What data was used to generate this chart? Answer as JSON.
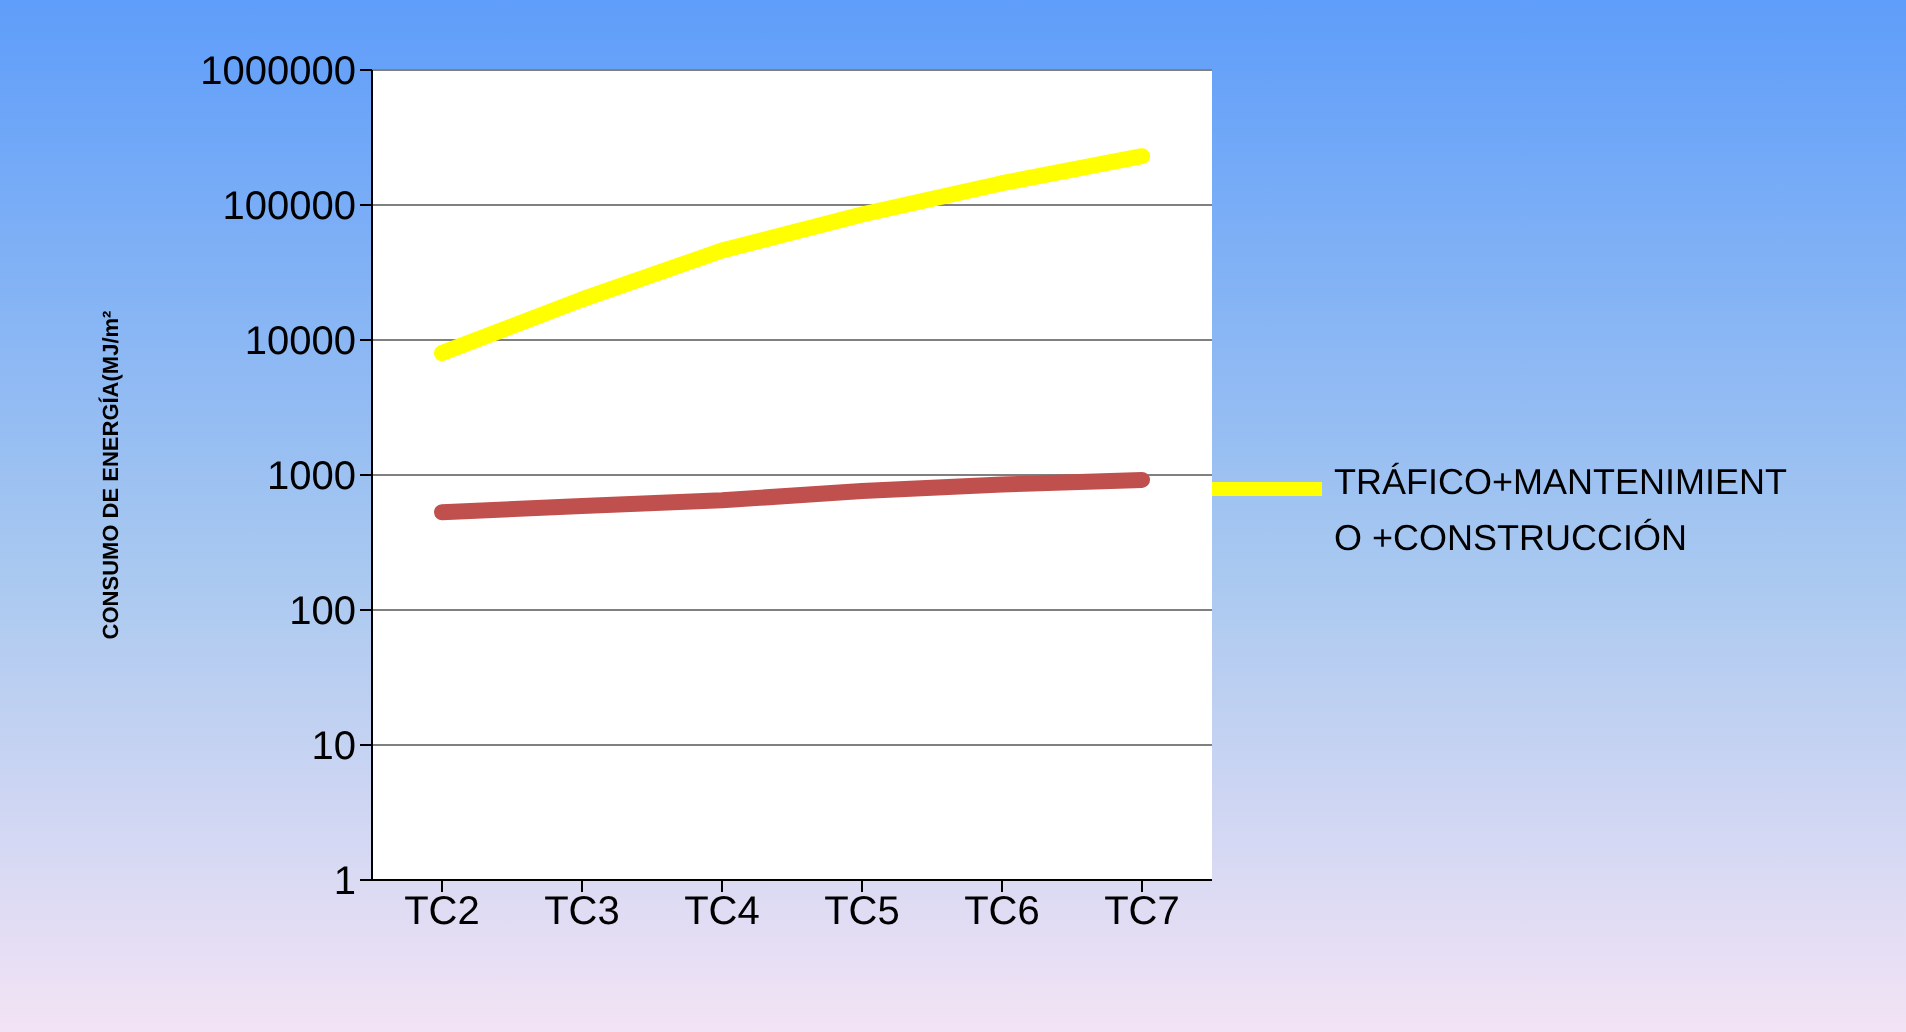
{
  "chart_data": {
    "type": "line",
    "ylabel": "CONSUMO DE ENERGÍA(MJ/m²",
    "categories": [
      "TC2",
      "TC3",
      "TC4",
      "TC5",
      "TC6",
      "TC7"
    ],
    "series": [
      {
        "name": "TRÁFICO+MANTENIMIENTO +CONSTRUCCIÓN",
        "color": "#ffff00",
        "values": [
          8000,
          20000,
          46000,
          85000,
          145000,
          230000
        ]
      },
      {
        "color": "#c0504d",
        "values": [
          530,
          590,
          650,
          760,
          850,
          920
        ]
      }
    ],
    "log": "y",
    "ylim": [
      1,
      1000000
    ],
    "yticks": [
      1,
      10,
      100,
      1000,
      10000,
      100000,
      1000000
    ],
    "grid": "y",
    "legend": "right",
    "marker": "none",
    "line_style": "solid"
  }
}
